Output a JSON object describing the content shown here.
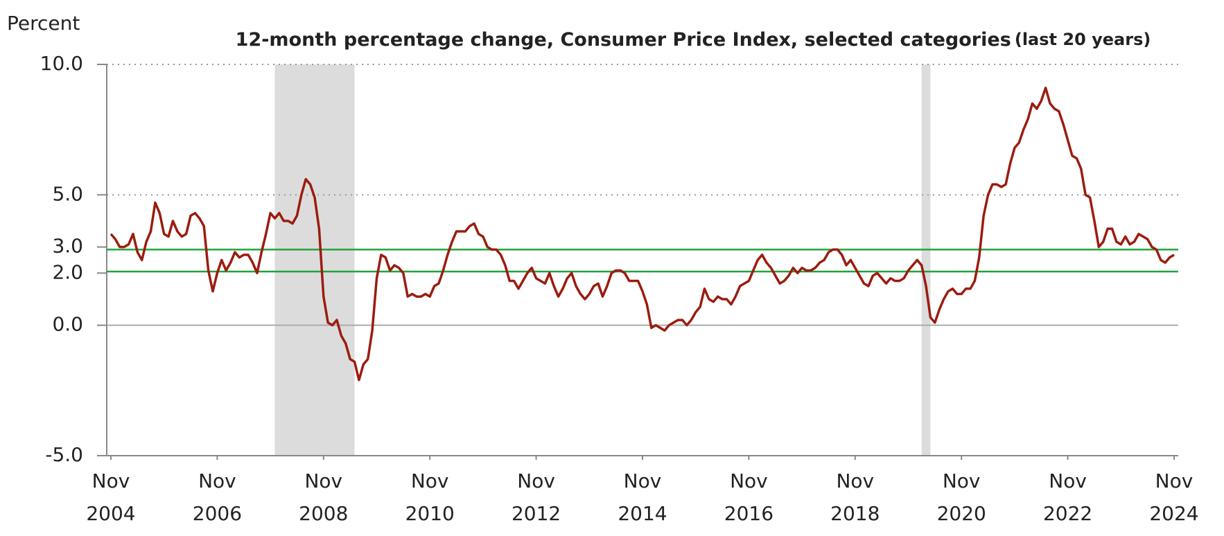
{
  "chart_data": {
    "type": "line",
    "title": "12-month percentage change, Consumer Price Index, selected categories",
    "title_note": "(last 20 years)",
    "y_label": "Percent",
    "color": "#9b1c10",
    "ylim": [
      -5,
      10
    ],
    "yticks": [
      {
        "value": -5,
        "label": "-5.0"
      },
      {
        "value": 0,
        "label": "0.0"
      },
      {
        "value": 2,
        "label": "2.0"
      },
      {
        "value": 3,
        "label": "3.0"
      },
      {
        "value": 5,
        "label": "5.0"
      },
      {
        "value": 10,
        "label": "10.0"
      }
    ],
    "dotted_grid": [
      5,
      10
    ],
    "zero_line": 0,
    "reference_lines": [
      {
        "value": 2.9,
        "color": "#22a33a"
      },
      {
        "value": 2.06,
        "color": "#22a33a"
      }
    ],
    "shaded_periods": [
      {
        "start": "2007-12",
        "end": "2009-06",
        "color": "#dcdcdc"
      },
      {
        "start": "2020-02",
        "end": "2020-04",
        "color": "#dcdcdc"
      }
    ],
    "xlim": [
      "2004-11",
      "2024-11"
    ],
    "xticks": [
      {
        "value": "2004-11",
        "label": [
          "Nov",
          "2004"
        ]
      },
      {
        "value": "2006-11",
        "label": [
          "Nov",
          "2006"
        ]
      },
      {
        "value": "2008-11",
        "label": [
          "Nov",
          "2008"
        ]
      },
      {
        "value": "2010-11",
        "label": [
          "Nov",
          "2010"
        ]
      },
      {
        "value": "2012-11",
        "label": [
          "Nov",
          "2012"
        ]
      },
      {
        "value": "2014-11",
        "label": [
          "Nov",
          "2014"
        ]
      },
      {
        "value": "2016-11",
        "label": [
          "Nov",
          "2016"
        ]
      },
      {
        "value": "2018-11",
        "label": [
          "Nov",
          "2018"
        ]
      },
      {
        "value": "2020-11",
        "label": [
          "Nov",
          "2020"
        ]
      },
      {
        "value": "2022-11",
        "label": [
          "Nov",
          "2022"
        ]
      },
      {
        "value": "2024-11",
        "label": [
          "Nov",
          "2024"
        ]
      }
    ],
    "x": [
      "2004-11",
      "2004-12",
      "2005-01",
      "2005-02",
      "2005-03",
      "2005-04",
      "2005-05",
      "2005-06",
      "2005-07",
      "2005-08",
      "2005-09",
      "2005-10",
      "2005-11",
      "2005-12",
      "2006-01",
      "2006-02",
      "2006-03",
      "2006-04",
      "2006-05",
      "2006-06",
      "2006-07",
      "2006-08",
      "2006-09",
      "2006-10",
      "2006-11",
      "2006-12",
      "2007-01",
      "2007-02",
      "2007-03",
      "2007-04",
      "2007-05",
      "2007-06",
      "2007-07",
      "2007-08",
      "2007-09",
      "2007-10",
      "2007-11",
      "2007-12",
      "2008-01",
      "2008-02",
      "2008-03",
      "2008-04",
      "2008-05",
      "2008-06",
      "2008-07",
      "2008-08",
      "2008-09",
      "2008-10",
      "2008-11",
      "2008-12",
      "2009-01",
      "2009-02",
      "2009-03",
      "2009-04",
      "2009-05",
      "2009-06",
      "2009-07",
      "2009-08",
      "2009-09",
      "2009-10",
      "2009-11",
      "2009-12",
      "2010-01",
      "2010-02",
      "2010-03",
      "2010-04",
      "2010-05",
      "2010-06",
      "2010-07",
      "2010-08",
      "2010-09",
      "2010-10",
      "2010-11",
      "2010-12",
      "2011-01",
      "2011-02",
      "2011-03",
      "2011-04",
      "2011-05",
      "2011-06",
      "2011-07",
      "2011-08",
      "2011-09",
      "2011-10",
      "2011-11",
      "2011-12",
      "2012-01",
      "2012-02",
      "2012-03",
      "2012-04",
      "2012-05",
      "2012-06",
      "2012-07",
      "2012-08",
      "2012-09",
      "2012-10",
      "2012-11",
      "2012-12",
      "2013-01",
      "2013-02",
      "2013-03",
      "2013-04",
      "2013-05",
      "2013-06",
      "2013-07",
      "2013-08",
      "2013-09",
      "2013-10",
      "2013-11",
      "2013-12",
      "2014-01",
      "2014-02",
      "2014-03",
      "2014-04",
      "2014-05",
      "2014-06",
      "2014-07",
      "2014-08",
      "2014-09",
      "2014-10",
      "2014-11",
      "2014-12",
      "2015-01",
      "2015-02",
      "2015-03",
      "2015-04",
      "2015-05",
      "2015-06",
      "2015-07",
      "2015-08",
      "2015-09",
      "2015-10",
      "2015-11",
      "2015-12",
      "2016-01",
      "2016-02",
      "2016-03",
      "2016-04",
      "2016-05",
      "2016-06",
      "2016-07",
      "2016-08",
      "2016-09",
      "2016-10",
      "2016-11",
      "2016-12",
      "2017-01",
      "2017-02",
      "2017-03",
      "2017-04",
      "2017-05",
      "2017-06",
      "2017-07",
      "2017-08",
      "2017-09",
      "2017-10",
      "2017-11",
      "2017-12",
      "2018-01",
      "2018-02",
      "2018-03",
      "2018-04",
      "2018-05",
      "2018-06",
      "2018-07",
      "2018-08",
      "2018-09",
      "2018-10",
      "2018-11",
      "2018-12",
      "2019-01",
      "2019-02",
      "2019-03",
      "2019-04",
      "2019-05",
      "2019-06",
      "2019-07",
      "2019-08",
      "2019-09",
      "2019-10",
      "2019-11",
      "2019-12",
      "2020-01",
      "2020-02",
      "2020-03",
      "2020-04",
      "2020-05",
      "2020-06",
      "2020-07",
      "2020-08",
      "2020-09",
      "2020-10",
      "2020-11",
      "2020-12",
      "2021-01",
      "2021-02",
      "2021-03",
      "2021-04",
      "2021-05",
      "2021-06",
      "2021-07",
      "2021-08",
      "2021-09",
      "2021-10",
      "2021-11",
      "2021-12",
      "2022-01",
      "2022-02",
      "2022-03",
      "2022-04",
      "2022-05",
      "2022-06",
      "2022-07",
      "2022-08",
      "2022-09",
      "2022-10",
      "2022-11",
      "2022-12",
      "2023-01",
      "2023-02",
      "2023-03",
      "2023-04",
      "2023-05",
      "2023-06",
      "2023-07",
      "2023-08",
      "2023-09",
      "2023-10",
      "2023-11",
      "2023-12",
      "2024-01",
      "2024-02",
      "2024-03",
      "2024-04",
      "2024-05",
      "2024-06",
      "2024-07",
      "2024-08",
      "2024-09",
      "2024-10",
      "2024-11"
    ],
    "values": [
      3.5,
      3.3,
      3.0,
      3.0,
      3.1,
      3.5,
      2.8,
      2.5,
      3.2,
      3.6,
      4.7,
      4.3,
      3.5,
      3.4,
      4.0,
      3.6,
      3.4,
      3.5,
      4.2,
      4.3,
      4.1,
      3.8,
      2.1,
      1.3,
      2.0,
      2.5,
      2.1,
      2.4,
      2.8,
      2.6,
      2.7,
      2.7,
      2.4,
      2.0,
      2.8,
      3.5,
      4.3,
      4.1,
      4.3,
      4.0,
      4.0,
      3.9,
      4.2,
      5.0,
      5.6,
      5.4,
      4.9,
      3.7,
      1.1,
      0.1,
      0.0,
      0.2,
      -0.4,
      -0.7,
      -1.3,
      -1.4,
      -2.1,
      -1.5,
      -1.3,
      -0.2,
      1.8,
      2.7,
      2.6,
      2.1,
      2.3,
      2.2,
      2.0,
      1.1,
      1.2,
      1.1,
      1.1,
      1.2,
      1.1,
      1.5,
      1.6,
      2.1,
      2.7,
      3.2,
      3.6,
      3.6,
      3.6,
      3.8,
      3.9,
      3.5,
      3.4,
      3.0,
      2.9,
      2.9,
      2.7,
      2.3,
      1.7,
      1.7,
      1.4,
      1.7,
      2.0,
      2.2,
      1.8,
      1.7,
      1.6,
      2.0,
      1.5,
      1.1,
      1.4,
      1.8,
      2.0,
      1.5,
      1.2,
      1.0,
      1.2,
      1.5,
      1.6,
      1.1,
      1.5,
      2.0,
      2.1,
      2.1,
      2.0,
      1.7,
      1.7,
      1.7,
      1.3,
      0.8,
      -0.1,
      0.0,
      -0.1,
      -0.2,
      0.0,
      0.1,
      0.2,
      0.2,
      0.0,
      0.2,
      0.5,
      0.7,
      1.4,
      1.0,
      0.9,
      1.1,
      1.0,
      1.0,
      0.8,
      1.1,
      1.5,
      1.6,
      1.7,
      2.1,
      2.5,
      2.7,
      2.4,
      2.2,
      1.9,
      1.6,
      1.7,
      1.9,
      2.2,
      2.0,
      2.2,
      2.1,
      2.1,
      2.2,
      2.4,
      2.5,
      2.8,
      2.9,
      2.9,
      2.7,
      2.3,
      2.5,
      2.2,
      1.9,
      1.6,
      1.5,
      1.9,
      2.0,
      1.8,
      1.6,
      1.8,
      1.7,
      1.7,
      1.8,
      2.1,
      2.3,
      2.5,
      2.3,
      1.5,
      0.3,
      0.1,
      0.6,
      1.0,
      1.3,
      1.4,
      1.2,
      1.2,
      1.4,
      1.4,
      1.7,
      2.6,
      4.2,
      5.0,
      5.4,
      5.4,
      5.3,
      5.4,
      6.2,
      6.8,
      7.0,
      7.5,
      7.9,
      8.5,
      8.3,
      8.6,
      9.1,
      8.5,
      8.3,
      8.2,
      7.7,
      7.1,
      6.5,
      6.4,
      6.0,
      5.0,
      4.9,
      4.0,
      3.0,
      3.2,
      3.7,
      3.7,
      3.2,
      3.1,
      3.4,
      3.1,
      3.2,
      3.5,
      3.4,
      3.3,
      3.0,
      2.9,
      2.5,
      2.4,
      2.6,
      2.7
    ]
  }
}
